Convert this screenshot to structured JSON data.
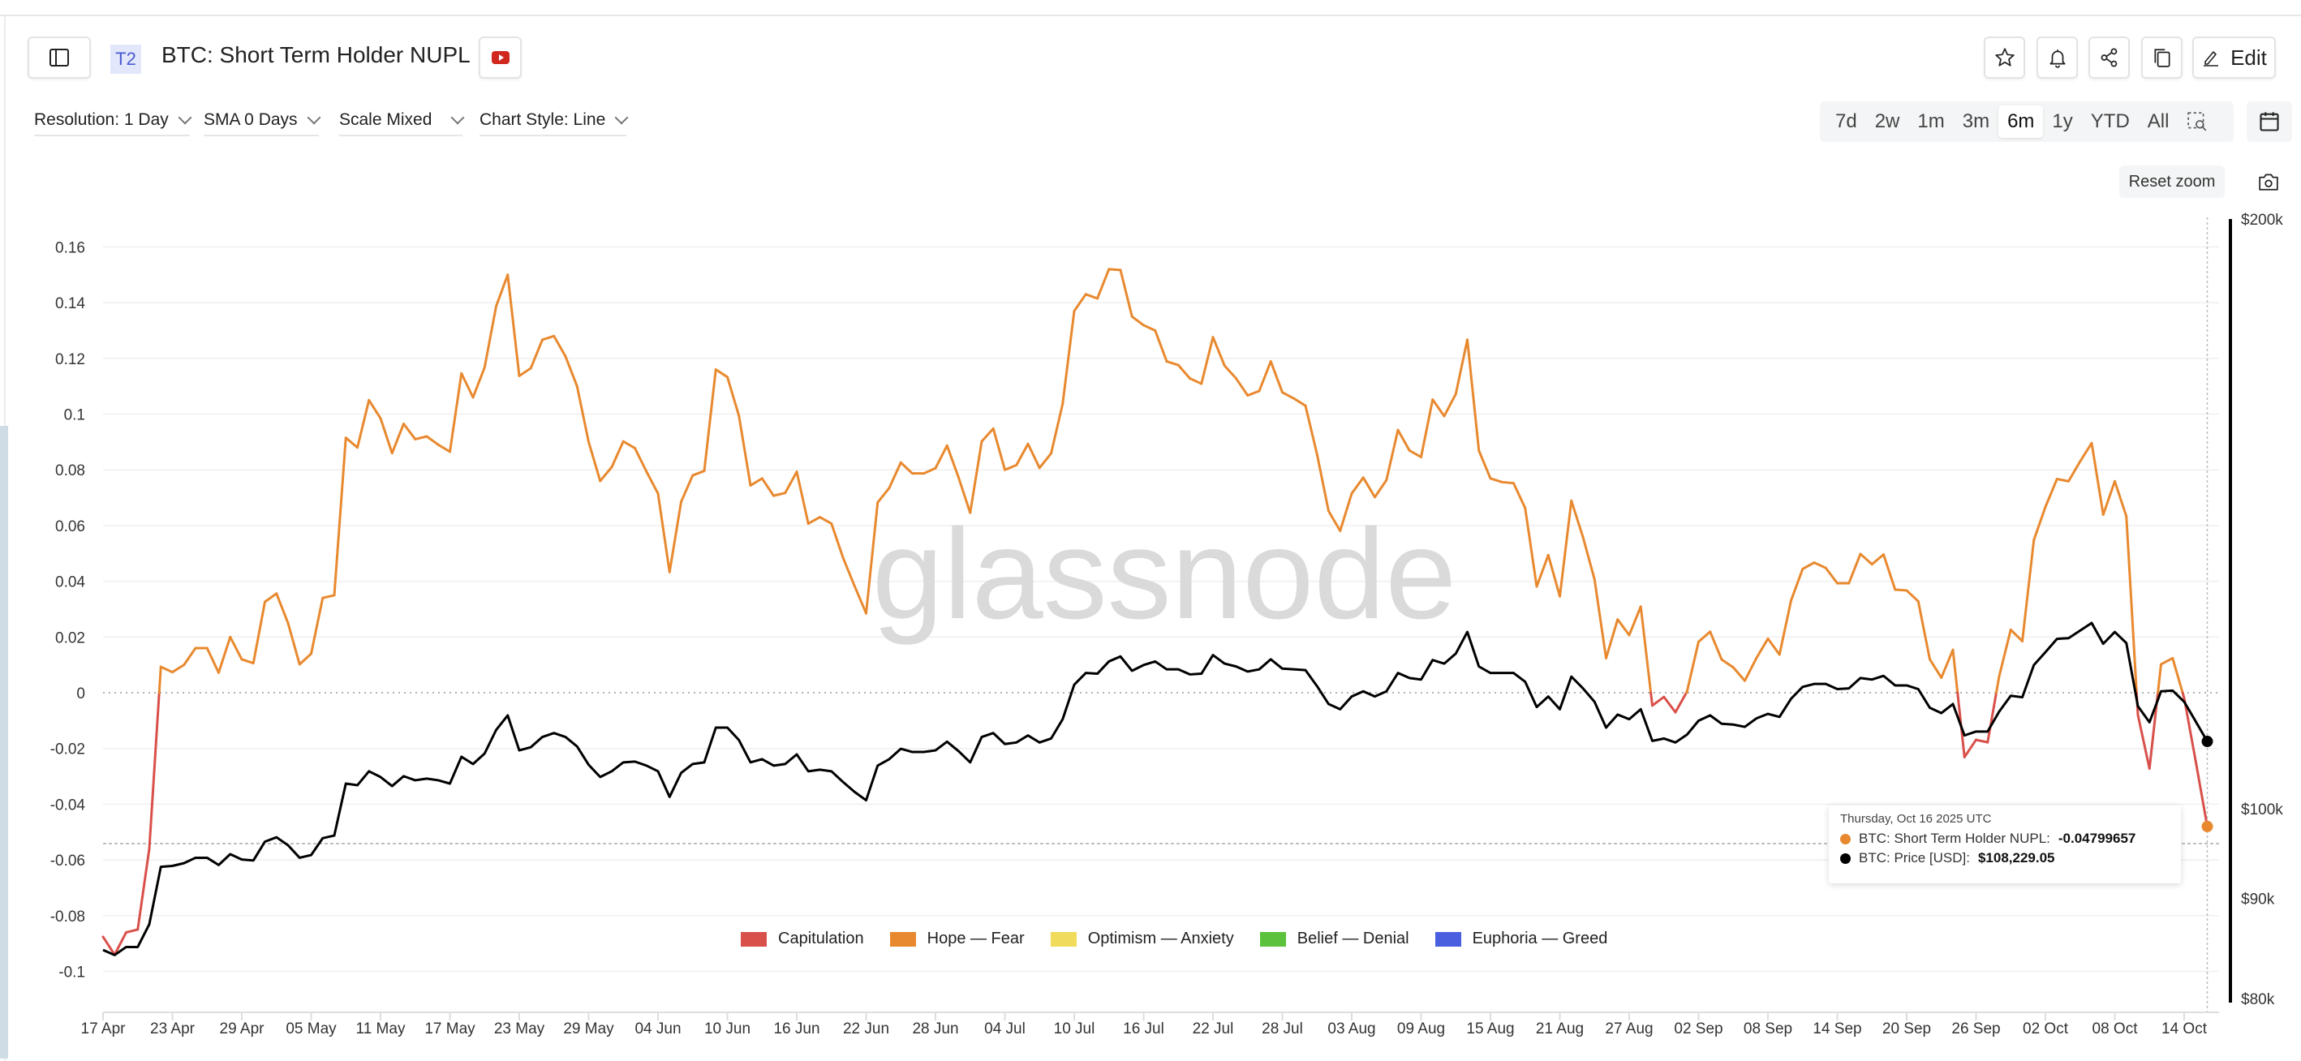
{
  "header": {
    "badge": "T2",
    "title": "BTC: Short Term Holder NUPL",
    "edit_label": "Edit",
    "icons": [
      "sidebar-toggle-icon",
      "youtube-icon",
      "star-icon",
      "bell-icon",
      "share-icon",
      "copy-icon",
      "pencil-icon"
    ]
  },
  "controls": {
    "resolution": "Resolution: 1 Day",
    "sma": "SMA 0 Days",
    "scale": "Scale Mixed",
    "chart_style": "Chart Style: Line",
    "ranges": [
      "7d",
      "2w",
      "1m",
      "3m",
      "6m",
      "1y",
      "YTD",
      "All"
    ],
    "active_range": "6m",
    "reset_zoom": "Reset zoom"
  },
  "tooltip": {
    "date": "Thursday, Oct 16 2025 UTC",
    "nupl_label": "BTC: Short Term Holder NUPL:",
    "nupl_value": "-0.04799657",
    "price_label": "BTC: Price [USD]:",
    "price_value": "$108,229.05"
  },
  "watermark": "glassnode",
  "colors": {
    "capitulation": "#d9504a",
    "hope_fear": "#e8892f",
    "optimism_anxiety": "#f0dc5a",
    "belief_denial": "#5cc23c",
    "euphoria_greed": "#4a5fe0",
    "price": "#000000"
  },
  "chart_data": {
    "type": "line",
    "grid": true,
    "legend_placement": "bottom-center",
    "legend": [
      "Capitulation",
      "Hope — Fear",
      "Optimism — Anxiety",
      "Belief — Denial",
      "Euphoria — Greed"
    ],
    "x_tick_labels": [
      "17 Apr",
      "23 Apr",
      "29 Apr",
      "05 May",
      "11 May",
      "17 May",
      "23 May",
      "29 May",
      "04 Jun",
      "10 Jun",
      "16 Jun",
      "22 Jun",
      "28 Jun",
      "04 Jul",
      "10 Jul",
      "16 Jul",
      "22 Jul",
      "28 Jul",
      "03 Aug",
      "09 Aug",
      "15 Aug",
      "21 Aug",
      "27 Aug",
      "02 Sep",
      "08 Sep",
      "14 Sep",
      "20 Sep",
      "26 Sep",
      "02 Oct",
      "08 Oct",
      "14 Oct"
    ],
    "y_left": {
      "ticks": [
        0.16,
        0.14,
        0.12,
        0.1,
        0.08,
        0.06,
        0.04,
        0.02,
        0,
        -0.02,
        -0.04,
        -0.06,
        -0.08,
        -0.1
      ],
      "tick_labels": [
        "0.16",
        "0.14",
        "0.12",
        "0.1",
        "0.08",
        "0.06",
        "0.04",
        "0.02",
        "0",
        "-0.02",
        "-0.04",
        "-0.06",
        "-0.08",
        "-0.1"
      ],
      "range": [
        -0.1,
        0.16
      ]
    },
    "y_right": {
      "scale": "log",
      "ticks": [
        200,
        100,
        90,
        80
      ],
      "tick_labels": [
        "$200k",
        "$100k",
        "$90k",
        "$80k"
      ],
      "range_k": [
        80,
        200
      ]
    },
    "dates": [
      "2025-04-17",
      "2025-04-18",
      "2025-04-19",
      "2025-04-20",
      "2025-04-21",
      "2025-04-22",
      "2025-04-23",
      "2025-04-24",
      "2025-04-25",
      "2025-04-26",
      "2025-04-27",
      "2025-04-28",
      "2025-04-29",
      "2025-04-30",
      "2025-05-01",
      "2025-05-02",
      "2025-05-03",
      "2025-05-04",
      "2025-05-05",
      "2025-05-06",
      "2025-05-07",
      "2025-05-08",
      "2025-05-09",
      "2025-05-10",
      "2025-05-11",
      "2025-05-12",
      "2025-05-13",
      "2025-05-14",
      "2025-05-15",
      "2025-05-16",
      "2025-05-17",
      "2025-05-18",
      "2025-05-19",
      "2025-05-20",
      "2025-05-21",
      "2025-05-22",
      "2025-05-23",
      "2025-05-24",
      "2025-05-25",
      "2025-05-26",
      "2025-05-27",
      "2025-05-28",
      "2025-05-29",
      "2025-05-30",
      "2025-05-31",
      "2025-06-01",
      "2025-06-02",
      "2025-06-03",
      "2025-06-04",
      "2025-06-05",
      "2025-06-06",
      "2025-06-07",
      "2025-06-08",
      "2025-06-09",
      "2025-06-10",
      "2025-06-11",
      "2025-06-12",
      "2025-06-13",
      "2025-06-14",
      "2025-06-15",
      "2025-06-16",
      "2025-06-17",
      "2025-06-18",
      "2025-06-19",
      "2025-06-20",
      "2025-06-21",
      "2025-06-22",
      "2025-06-23",
      "2025-06-24",
      "2025-06-25",
      "2025-06-26",
      "2025-06-27",
      "2025-06-28",
      "2025-06-29",
      "2025-06-30",
      "2025-07-01",
      "2025-07-02",
      "2025-07-03",
      "2025-07-04",
      "2025-07-05",
      "2025-07-06",
      "2025-07-07",
      "2025-07-08",
      "2025-07-09",
      "2025-07-10",
      "2025-07-11",
      "2025-07-12",
      "2025-07-13",
      "2025-07-14",
      "2025-07-15",
      "2025-07-16",
      "2025-07-17",
      "2025-07-18",
      "2025-07-19",
      "2025-07-20",
      "2025-07-21",
      "2025-07-22",
      "2025-07-23",
      "2025-07-24",
      "2025-07-25",
      "2025-07-26",
      "2025-07-27",
      "2025-07-28",
      "2025-07-29",
      "2025-07-30",
      "2025-07-31",
      "2025-08-01",
      "2025-08-02",
      "2025-08-03",
      "2025-08-04",
      "2025-08-05",
      "2025-08-06",
      "2025-08-07",
      "2025-08-08",
      "2025-08-09",
      "2025-08-10",
      "2025-08-11",
      "2025-08-12",
      "2025-08-13",
      "2025-08-14",
      "2025-08-15",
      "2025-08-16",
      "2025-08-17",
      "2025-08-18",
      "2025-08-19",
      "2025-08-20",
      "2025-08-21",
      "2025-08-22",
      "2025-08-23",
      "2025-08-24",
      "2025-08-25",
      "2025-08-26",
      "2025-08-27",
      "2025-08-28",
      "2025-08-29",
      "2025-08-30",
      "2025-08-31",
      "2025-09-01",
      "2025-09-02",
      "2025-09-03",
      "2025-09-04",
      "2025-09-05",
      "2025-09-06",
      "2025-09-07",
      "2025-09-08",
      "2025-09-09",
      "2025-09-10",
      "2025-09-11",
      "2025-09-12",
      "2025-09-13",
      "2025-09-14",
      "2025-09-15",
      "2025-09-16",
      "2025-09-17",
      "2025-09-18",
      "2025-09-19",
      "2025-09-20",
      "2025-09-21",
      "2025-09-22",
      "2025-09-23",
      "2025-09-24",
      "2025-09-25",
      "2025-09-26",
      "2025-09-27",
      "2025-09-28",
      "2025-09-29",
      "2025-09-30",
      "2025-10-01",
      "2025-10-02",
      "2025-10-03",
      "2025-10-04",
      "2025-10-05",
      "2025-10-06",
      "2025-10-07",
      "2025-10-08",
      "2025-10-09",
      "2025-10-10",
      "2025-10-11",
      "2025-10-12",
      "2025-10-13",
      "2025-10-14",
      "2025-10-15",
      "2025-10-16"
    ],
    "series": [
      {
        "name": "BTC: Short Term Holder NUPL",
        "axis": "left",
        "values": [
          -0.0876,
          -0.094,
          -0.086,
          -0.085,
          -0.056,
          0.0093,
          0.0074,
          0.01,
          0.016,
          0.016,
          0.0072,
          0.02,
          0.012,
          0.0106,
          0.0326,
          0.0356,
          0.025,
          0.0102,
          0.014,
          0.034,
          0.035,
          0.0915,
          0.088,
          0.105,
          0.0985,
          0.086,
          0.0965,
          0.091,
          0.092,
          0.089,
          0.0865,
          0.1146,
          0.106,
          0.1167,
          0.1387,
          0.15,
          0.1137,
          0.1165,
          0.1267,
          0.128,
          0.1207,
          0.11,
          0.09,
          0.076,
          0.081,
          0.0902,
          0.0878,
          0.0794,
          0.0715,
          0.0433,
          0.0685,
          0.078,
          0.0796,
          0.116,
          0.1133,
          0.0994,
          0.0744,
          0.0769,
          0.0707,
          0.0717,
          0.0793,
          0.0607,
          0.063,
          0.0607,
          0.0485,
          0.0383,
          0.0285,
          0.0683,
          0.0735,
          0.0826,
          0.0787,
          0.0787,
          0.0806,
          0.0887,
          0.0772,
          0.0646,
          0.0902,
          0.0948,
          0.08,
          0.0817,
          0.0893,
          0.0807,
          0.0859,
          0.1037,
          0.137,
          0.143,
          0.1415,
          0.152,
          0.1517,
          0.135,
          0.1319,
          0.13,
          0.1189,
          0.1176,
          0.1128,
          0.1109,
          0.1276,
          0.1174,
          0.1128,
          0.1067,
          0.1083,
          0.1189,
          0.1078,
          0.1056,
          0.103,
          0.0856,
          0.0652,
          0.0581,
          0.0715,
          0.0772,
          0.0702,
          0.0763,
          0.0943,
          0.0869,
          0.0846,
          0.1052,
          0.0993,
          0.1072,
          0.1267,
          0.0869,
          0.0769,
          0.0756,
          0.0752,
          0.0663,
          0.0381,
          0.0494,
          0.0346,
          0.0689,
          0.0559,
          0.0407,
          0.0124,
          0.0263,
          0.0207,
          0.0309,
          -0.0046,
          -0.0015,
          -0.007,
          0.0004,
          0.0183,
          0.0219,
          0.0119,
          0.0091,
          0.0043,
          0.0124,
          0.0194,
          0.0137,
          0.0331,
          0.0444,
          0.0467,
          0.0448,
          0.0393,
          0.0393,
          0.0498,
          0.0461,
          0.0496,
          0.037,
          0.0367,
          0.0328,
          0.012,
          0.0054,
          0.0154,
          -0.0231,
          -0.0169,
          -0.0178,
          0.0059,
          0.0226,
          0.0185,
          0.0548,
          0.0667,
          0.0767,
          0.0759,
          0.083,
          0.0896,
          0.0639,
          0.0759,
          0.0633,
          -0.008,
          -0.0272,
          0.0102,
          0.0124,
          -0.0019,
          -0.0246,
          -0.04799657
        ]
      },
      {
        "name": "BTC: Price [USD]",
        "axis": "right",
        "unit": "k USD",
        "values": [
          84.7,
          84.2,
          85.0,
          85.0,
          87.3,
          93.4,
          93.5,
          93.8,
          94.4,
          94.4,
          93.6,
          94.8,
          94.2,
          94.1,
          96.2,
          96.7,
          95.8,
          94.4,
          94.7,
          96.6,
          96.9,
          103.0,
          102.8,
          104.5,
          103.8,
          102.7,
          103.9,
          103.4,
          103.6,
          103.4,
          103.0,
          106.3,
          105.4,
          106.7,
          109.7,
          111.6,
          107.1,
          107.5,
          108.8,
          109.3,
          108.8,
          107.6,
          105.3,
          103.8,
          104.5,
          105.6,
          105.7,
          105.2,
          104.5,
          101.4,
          104.3,
          105.4,
          105.6,
          110.0,
          110.0,
          108.4,
          105.6,
          106.0,
          105.2,
          105.4,
          106.6,
          104.5,
          104.7,
          104.5,
          103.2,
          102.0,
          101.0,
          105.2,
          106.0,
          107.3,
          106.9,
          106.9,
          107.1,
          108.2,
          107.0,
          105.6,
          108.8,
          109.3,
          107.9,
          108.1,
          109.0,
          108.1,
          108.6,
          111.1,
          115.7,
          117.3,
          117.2,
          118.9,
          119.6,
          117.6,
          118.4,
          118.9,
          117.8,
          117.8,
          117.1,
          117.2,
          119.8,
          118.6,
          118.2,
          117.5,
          117.8,
          119.2,
          117.9,
          117.8,
          117.7,
          115.5,
          113.1,
          112.4,
          114.1,
          114.8,
          114.1,
          114.8,
          117.3,
          116.6,
          116.4,
          119.1,
          118.6,
          120.0,
          123.1,
          118.2,
          117.3,
          117.3,
          117.3,
          116.1,
          112.7,
          114.1,
          112.4,
          116.8,
          115.2,
          113.4,
          110.0,
          111.7,
          111.1,
          112.4,
          108.3,
          108.6,
          108.1,
          109.1,
          110.9,
          111.6,
          110.5,
          110.4,
          110.1,
          111.2,
          111.8,
          111.4,
          113.8,
          115.4,
          115.8,
          115.8,
          115.1,
          115.2,
          116.6,
          116.4,
          116.9,
          115.6,
          115.6,
          115.1,
          112.6,
          111.9,
          113.1,
          109.0,
          109.5,
          109.5,
          112.1,
          114.2,
          114.0,
          118.4,
          120.2,
          122.1,
          122.2,
          123.3,
          124.4,
          121.4,
          123.1,
          121.5,
          112.8,
          110.7,
          114.8,
          114.9,
          113.4,
          110.8,
          108.22905
        ]
      }
    ]
  }
}
